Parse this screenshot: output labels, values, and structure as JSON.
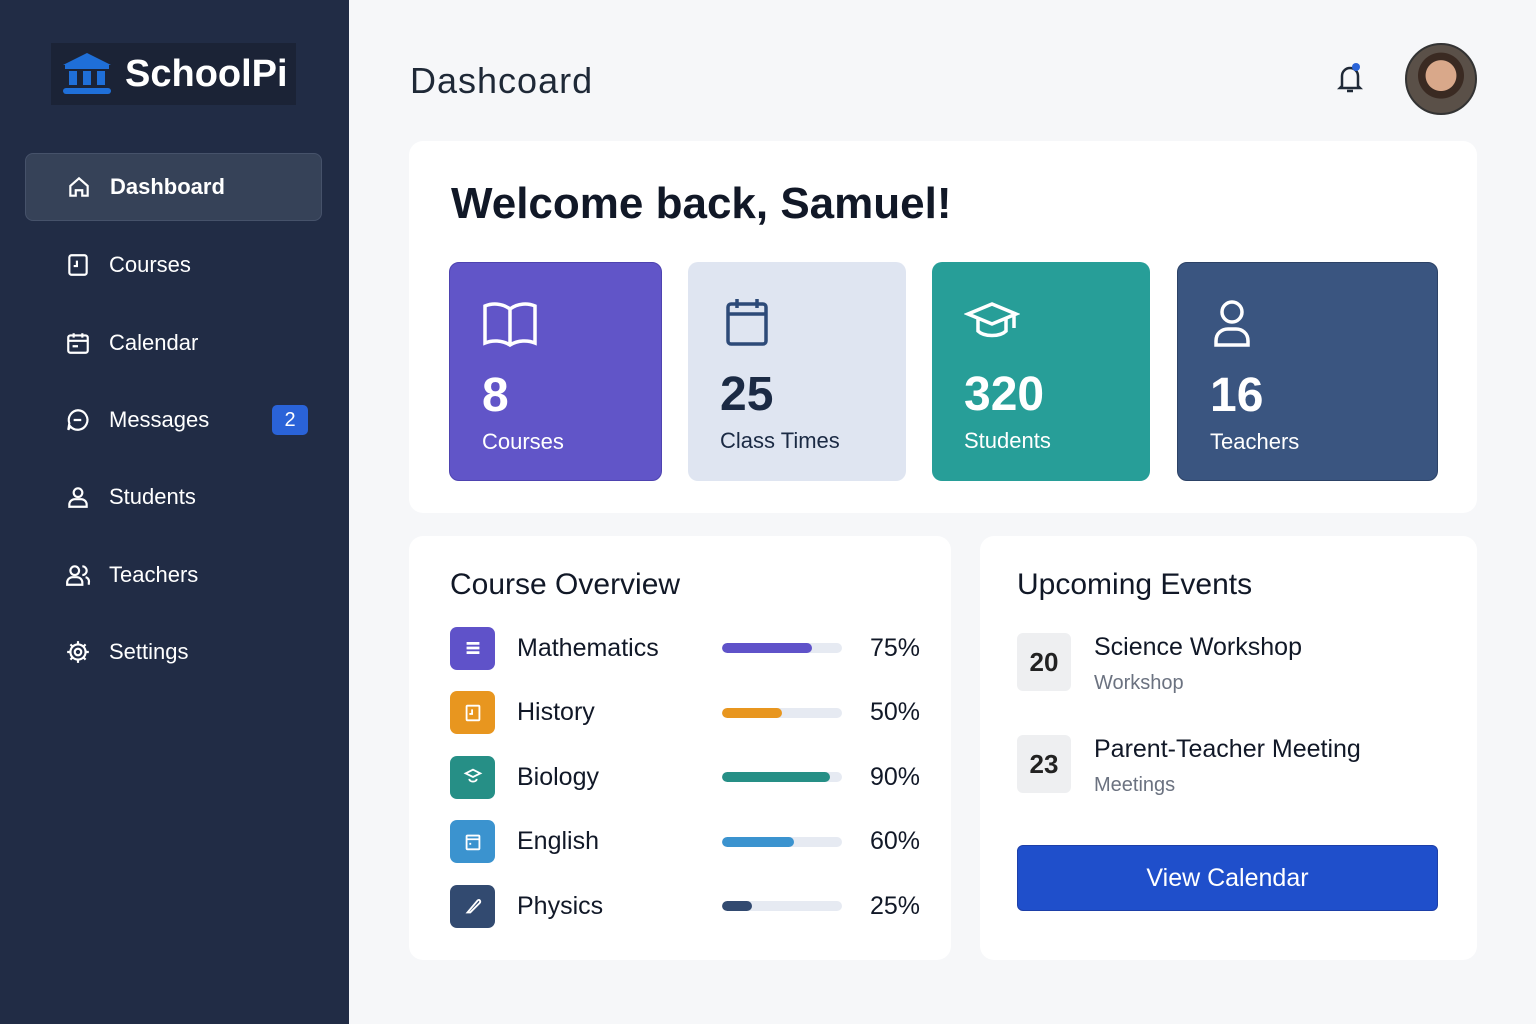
{
  "brand": {
    "name": "SchoolPi",
    "color": "#1f6fd8"
  },
  "sidebar": {
    "items": [
      {
        "label": "Dashboard",
        "icon": "home-icon",
        "active": true
      },
      {
        "label": "Courses",
        "icon": "book-icon"
      },
      {
        "label": "Calendar",
        "icon": "calendar-icon"
      },
      {
        "label": "Messages",
        "icon": "chat-icon",
        "badge": "2"
      },
      {
        "label": "Students",
        "icon": "user-icon"
      },
      {
        "label": "Teachers",
        "icon": "users-icon"
      },
      {
        "label": "Settings",
        "icon": "gear-icon"
      }
    ]
  },
  "header": {
    "title": "Dashcoard",
    "notification_icon": "bell-icon",
    "has_notification_dot": true
  },
  "welcome": {
    "heading": "Welcome back, Samuel!",
    "stats": [
      {
        "value": "8",
        "label": "Courses",
        "icon": "open-book-icon",
        "color": "#6155c8"
      },
      {
        "value": "25",
        "label": "Class Times",
        "icon": "calendar-icon",
        "color": "#dfe5f1"
      },
      {
        "value": "320",
        "label": "Students",
        "icon": "graduation-cap-icon",
        "color": "#279e98"
      },
      {
        "value": "16",
        "label": "Teachers",
        "icon": "user-icon",
        "color": "#3a5580"
      }
    ]
  },
  "course_overview": {
    "title": "Course Overview",
    "courses": [
      {
        "name": "Mathematics",
        "percent": "75%",
        "progress": 75,
        "color": "#5f52c9"
      },
      {
        "name": "History",
        "percent": "50%",
        "progress": 50,
        "color": "#e8961f"
      },
      {
        "name": "Biology",
        "percent": "90%",
        "progress": 90,
        "color": "#268f86"
      },
      {
        "name": "English",
        "percent": "60%",
        "progress": 60,
        "color": "#3b93cf"
      },
      {
        "name": "Physics",
        "percent": "25%",
        "progress": 25,
        "color": "#324a70"
      }
    ]
  },
  "upcoming_events": {
    "title": "Upcoming Events",
    "events": [
      {
        "day": "20",
        "title": "Science Workshop",
        "category": "Workshop"
      },
      {
        "day": "23",
        "title": "Parent-Teacher Meeting",
        "category": "Meetings"
      }
    ],
    "button": "View Calendar"
  }
}
